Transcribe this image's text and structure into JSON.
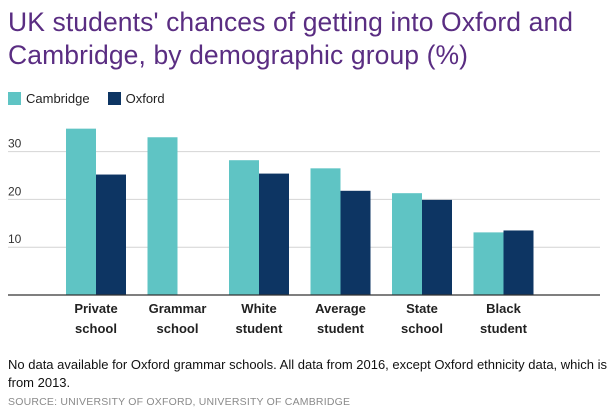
{
  "chart_data": {
    "type": "bar",
    "title": "UK students' chances of getting into Oxford and Cambridge, by demographic group (%)",
    "categories": [
      [
        "Private",
        "school"
      ],
      [
        "Grammar",
        "school"
      ],
      [
        "White",
        "student"
      ],
      [
        "Average",
        "student"
      ],
      [
        "State",
        "school"
      ],
      [
        "Black",
        "student"
      ]
    ],
    "series": [
      {
        "name": "Cambridge",
        "color": "#5fc4c4",
        "values": [
          34.8,
          33.0,
          28.2,
          26.5,
          21.3,
          13.1
        ]
      },
      {
        "name": "Oxford",
        "color": "#0d3563",
        "values": [
          25.2,
          null,
          25.4,
          21.8,
          19.9,
          13.5
        ]
      }
    ],
    "yticks": [
      10,
      20,
      30
    ],
    "ylim": [
      0,
      36
    ],
    "xlabel": "",
    "ylabel": "",
    "grid": true,
    "legend_position": "top-left"
  },
  "note": "No data available for Oxford grammar schools. All data from 2016, except Oxford ethnicity data, which is from 2013.",
  "source": "SOURCE: UNIVERSITY OF OXFORD, UNIVERSITY OF CAMBRIDGE"
}
